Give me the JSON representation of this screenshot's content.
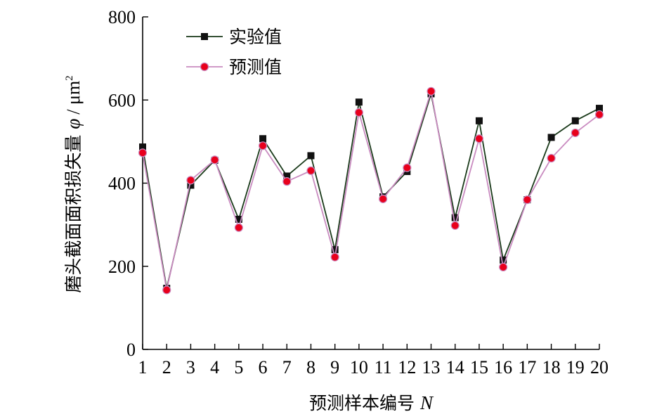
{
  "chart_data": {
    "type": "line",
    "xlabel_main": "预测样本编号",
    "xlabel_var": "N",
    "ylabel_main": "磨头截面面积损失量",
    "ylabel_var": "φ",
    "ylabel_unit": "/ μm",
    "ylabel_unit_exp": "2",
    "x": [
      1,
      2,
      3,
      4,
      5,
      6,
      7,
      8,
      9,
      10,
      11,
      12,
      13,
      14,
      15,
      16,
      17,
      18,
      19,
      20
    ],
    "ylim": [
      0,
      800
    ],
    "yticks": [
      0,
      200,
      400,
      600,
      800
    ],
    "grid": false,
    "legend_position": "top-left",
    "series": [
      {
        "name": "实验值",
        "marker": "square",
        "line_color": "#1a3a1a",
        "marker_color": "#111111",
        "values": [
          487,
          147,
          395,
          455,
          313,
          507,
          417,
          466,
          240,
          595,
          367,
          428,
          615,
          317,
          550,
          215,
          360,
          510,
          550,
          580
        ]
      },
      {
        "name": "预测值",
        "marker": "circle",
        "line_color": "#c98bc0",
        "marker_color": "#e8001c",
        "values": [
          473,
          143,
          407,
          456,
          293,
          490,
          404,
          430,
          222,
          570,
          362,
          437,
          621,
          298,
          507,
          198,
          360,
          460,
          521,
          565
        ]
      }
    ]
  }
}
